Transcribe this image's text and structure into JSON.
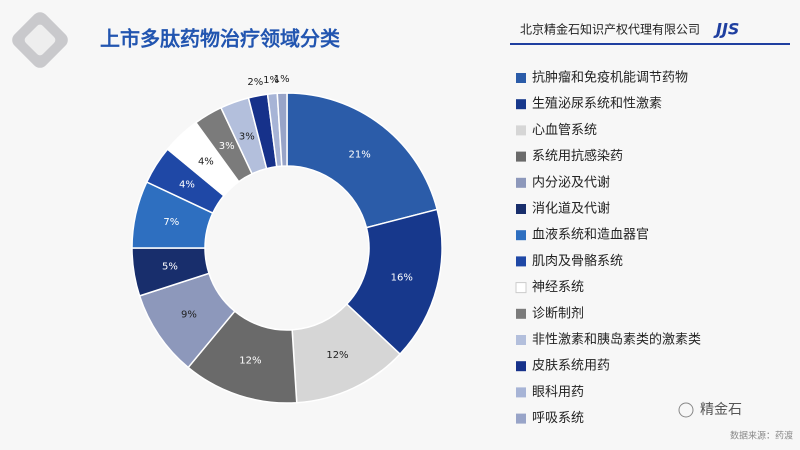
{
  "page": {
    "company": "北京精金石知识产权代理有限公司",
    "logo": "JJS",
    "brand": "精金石",
    "source": "数据来源：药渡"
  },
  "chart_data": {
    "type": "pie",
    "title": "上市多肽药物治疗领域分类",
    "legend": "right",
    "categories": [
      "抗肿瘤和免疫机能调节药物",
      "生殖泌尿系统和性激素",
      "心血管系统",
      "系统用抗感染药",
      "内分泌及代谢",
      "消化道及代谢",
      "血液系统和造血器官",
      "肌肉及骨骼系统",
      "神经系统",
      "诊断制剂",
      "非性激素和胰岛素类的激素类",
      "皮肤系统用药",
      "眼科用药",
      "呼吸系统"
    ],
    "values": [
      21,
      16,
      12,
      12,
      9,
      5,
      7,
      4,
      4,
      3,
      3,
      2,
      1,
      1
    ],
    "value_labels": [
      "21%",
      "16%",
      "12%",
      "12%",
      "9%",
      "5%",
      "7%",
      "4%",
      "4%",
      "3%",
      "3%",
      "2%",
      "1%",
      "1%"
    ],
    "colors": [
      "#2b5ca9",
      "#17388c",
      "#d6d6d6",
      "#6a6a6a",
      "#8d98bb",
      "#182e6c",
      "#2e6fc0",
      "#1f48a6",
      "#ffffff",
      "#7b7b7b",
      "#b3bfdc",
      "#16318a",
      "#a7b4d6",
      "#98a4c8"
    ]
  }
}
